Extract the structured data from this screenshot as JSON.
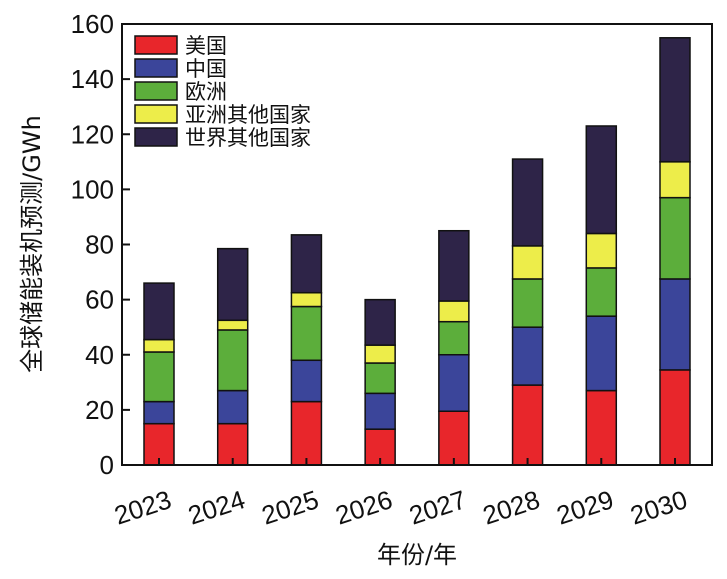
{
  "chart_data": {
    "type": "bar",
    "stacked": true,
    "categories": [
      "2023",
      "2024",
      "2025",
      "2026",
      "2027",
      "2028",
      "2029",
      "2030"
    ],
    "series": [
      {
        "name": "美国",
        "color": "#e8262b",
        "values": [
          15,
          15,
          23,
          13,
          19.5,
          29,
          27,
          34.5
        ]
      },
      {
        "name": "中国",
        "color": "#3b459a",
        "values": [
          8,
          12,
          15,
          13,
          20.5,
          21,
          27,
          33
        ]
      },
      {
        "name": "欧洲",
        "color": "#5cae3b",
        "values": [
          18,
          22,
          19.5,
          11,
          12,
          17.5,
          17.5,
          29.5
        ]
      },
      {
        "name": "亚洲其他国家",
        "color": "#eded4a",
        "values": [
          4.5,
          3.5,
          5,
          6.5,
          7.5,
          12,
          12.5,
          13
        ]
      },
      {
        "name": "世界其他国家",
        "color": "#2e2448",
        "values": [
          20.5,
          26,
          21,
          16.5,
          25.5,
          31.5,
          39,
          45
        ]
      }
    ],
    "title": "",
    "xlabel": "年份/年",
    "ylabel": "全球储能装机预测/GWh",
    "ylim": [
      0,
      160
    ],
    "yticks": [
      0,
      20,
      40,
      60,
      80,
      100,
      120,
      140,
      160
    ],
    "grid": false,
    "legend_position": "top-left"
  }
}
